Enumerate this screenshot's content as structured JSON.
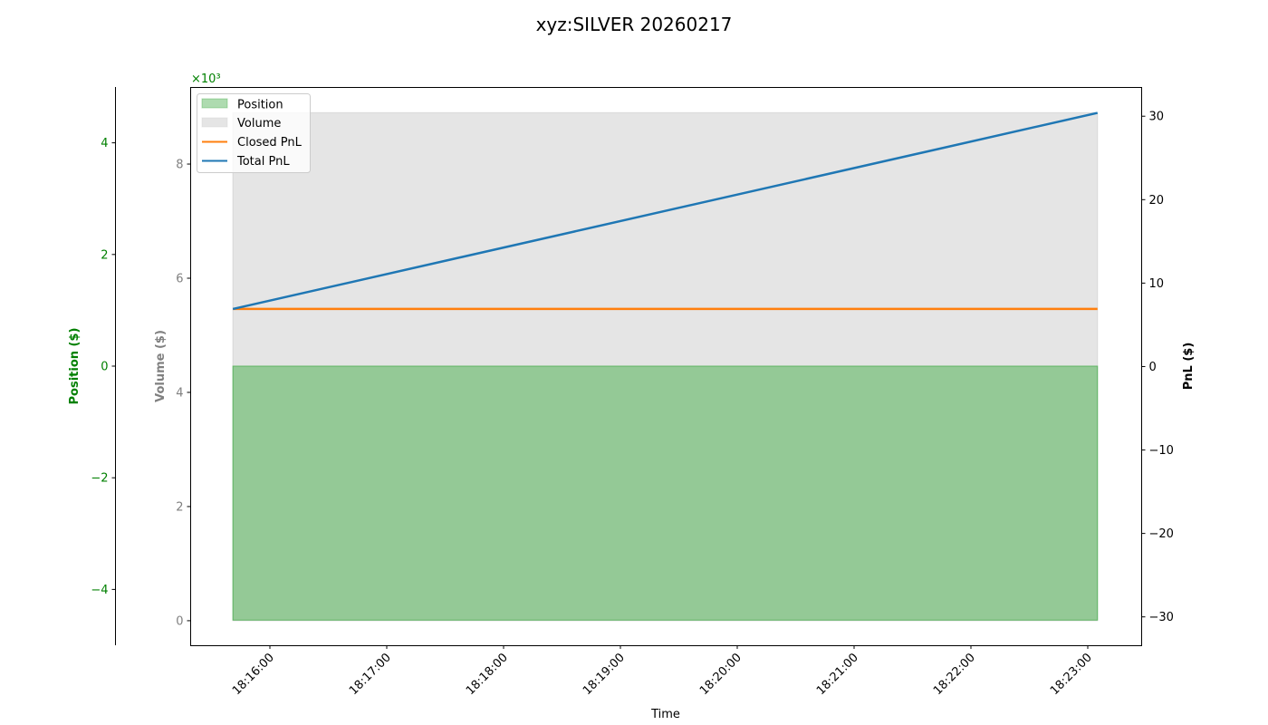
{
  "chart_data": {
    "type": "area",
    "title": "xyz:SILVER 20260217",
    "xlabel": "Time",
    "x_ticks": [
      "18:16:00",
      "18:17:00",
      "18:18:00",
      "18:19:00",
      "18:20:00",
      "18:21:00",
      "18:22:00",
      "18:23:00"
    ],
    "x_range": [
      "18:15:41",
      "18:23:05"
    ],
    "axes": {
      "position": {
        "label": "Position ($)",
        "color": "#008000",
        "offset_text": "×10³",
        "ticks": [
          -4,
          -2,
          0,
          2,
          4
        ],
        "ylim": [
          -5,
          5
        ],
        "multiplier": 1000
      },
      "volume": {
        "label": "Volume ($)",
        "color": "#808080",
        "ticks": [
          0,
          2,
          4,
          6,
          8
        ],
        "ylim": [
          -0.43,
          9.35
        ],
        "multiplier": 1000
      },
      "pnl": {
        "label": "PnL ($)",
        "color": "#000000",
        "ticks": [
          -30,
          -20,
          -10,
          0,
          10,
          20,
          30
        ],
        "ylim": [
          -33.4,
          33.5
        ]
      }
    },
    "series": [
      {
        "name": "Position",
        "type": "area",
        "axis": "position",
        "color": "#4caf50",
        "x": [
          "18:15:41",
          "18:23:05"
        ],
        "values": [
          -4550,
          -4550
        ]
      },
      {
        "name": "Volume",
        "type": "area",
        "axis": "volume",
        "color": "#d3d3d3",
        "x": [
          "18:15:41",
          "18:23:05"
        ],
        "values": [
          8900,
          8900
        ]
      },
      {
        "name": "Closed PnL",
        "type": "line",
        "axis": "pnl",
        "color": "#ff7f0e",
        "x": [
          "18:15:41",
          "18:23:05"
        ],
        "values": [
          6.9,
          6.9
        ]
      },
      {
        "name": "Total PnL",
        "type": "line",
        "axis": "pnl",
        "color": "#1f77b4",
        "x": [
          "18:15:41",
          "18:23:05"
        ],
        "values": [
          6.9,
          30.4
        ]
      }
    ],
    "legend": {
      "position": "upper left",
      "entries": [
        "Position",
        "Volume",
        "Closed PnL",
        "Total PnL"
      ]
    },
    "grid": false
  }
}
